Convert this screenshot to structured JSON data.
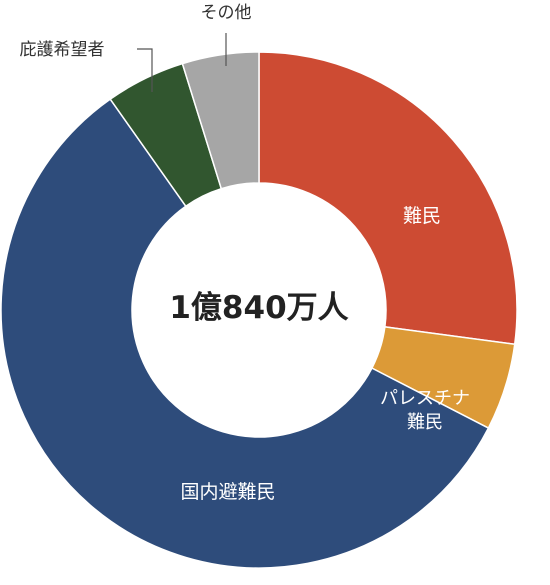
{
  "chart_data": {
    "type": "pie",
    "variant": "donut",
    "center_label": "1億840万人",
    "categories": [
      "難民",
      "パレスチナ難民",
      "国内避難民",
      "庇護希望者",
      "その他"
    ],
    "label_lines": [
      [
        "難民"
      ],
      [
        "パレスチナ",
        "難民"
      ],
      [
        "国内避難民"
      ],
      [
        "庇護希望者"
      ],
      [
        "その他"
      ]
    ],
    "values": [
      29.4,
      5.9,
      62.5,
      5.4,
      5.2
    ],
    "units": "百万人",
    "colors": [
      "#cd4b33",
      "#dc9a37",
      "#2e4c7b",
      "#31562f",
      "#a6a6a6"
    ],
    "label_color": [
      "#ffffff",
      "#ffffff",
      "#ffffff",
      "#333333",
      "#333333"
    ],
    "start_angle_deg": 0,
    "direction": "clockwise"
  }
}
